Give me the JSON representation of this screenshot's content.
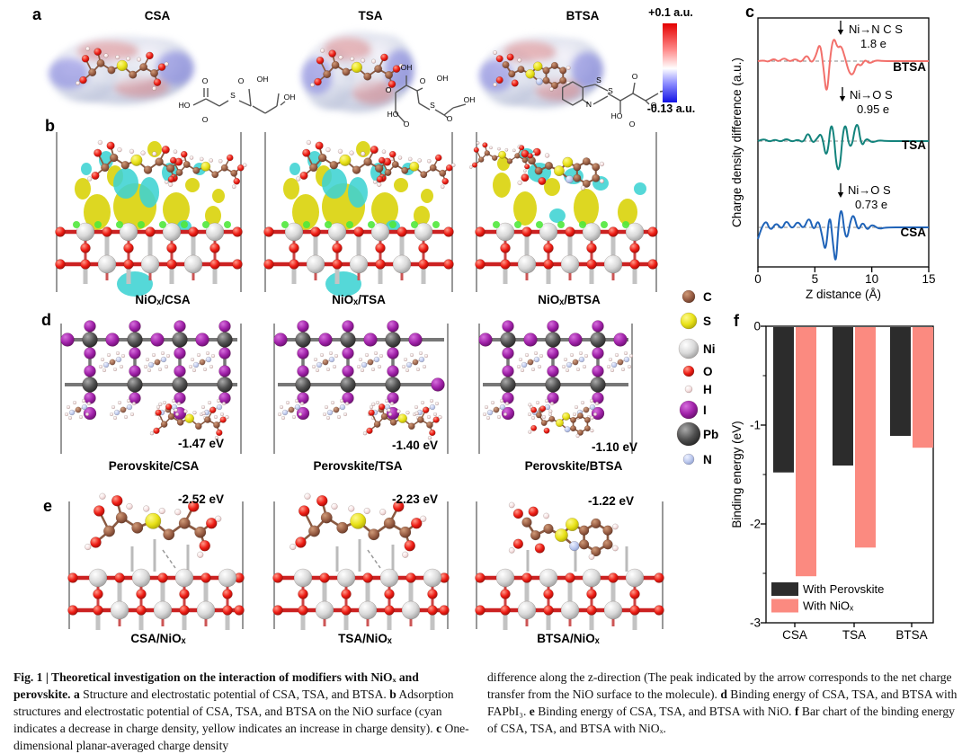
{
  "panel_a": {
    "label": "a",
    "molecule_titles": [
      "CSA",
      "TSA",
      "BTSA"
    ],
    "colorbar": {
      "top": "+0.1 a.u.",
      "bottom": "-0.13 a.u.",
      "top_color": "#e40000",
      "bottom_color": "#1212e4"
    },
    "skeletal_labels": {
      "CSA": [
        "HO",
        "O",
        "O",
        "OH",
        "S",
        "O",
        "OH"
      ],
      "TSA": [
        "OH",
        "O",
        "O",
        "OH",
        "HO",
        "O",
        "S",
        "O",
        "OH"
      ],
      "BTSA": [
        "S",
        "N",
        "S",
        "O",
        "OH",
        "HO",
        "O",
        "O"
      ]
    }
  },
  "panel_b": {
    "label": "b",
    "captions": [
      "NiOₓ/CSA",
      "NiOₓ/TSA",
      "NiOₓ/BTSA"
    ]
  },
  "panel_c": {
    "label": "c"
  },
  "panel_d": {
    "label": "d",
    "captions": [
      "Perovskite/CSA",
      "Perovskite/TSA",
      "Perovskite/BTSA"
    ],
    "energies": [
      "-1.47 eV",
      "-1.40 eV",
      "-1.10 eV"
    ]
  },
  "panel_e": {
    "label": "e",
    "captions": [
      "CSA/NiOₓ",
      "TSA/NiOₓ",
      "BTSA/NiOₓ"
    ],
    "energies": [
      "-2.52 eV",
      "-2.23 eV",
      "-1.22 eV"
    ]
  },
  "panel_f": {
    "label": "f"
  },
  "atom_legend": [
    {
      "symbol": "C",
      "color": "#9a5f45",
      "r": 7
    },
    {
      "symbol": "S",
      "color": "#e8e117",
      "r": 9
    },
    {
      "symbol": "Ni",
      "color": "#c9c9c9",
      "r": 11
    },
    {
      "symbol": "O",
      "color": "#ee1c14",
      "r": 6
    },
    {
      "symbol": "H",
      "color": "#f6e3e3",
      "r": 4
    },
    {
      "symbol": "I",
      "color": "#a021a9",
      "r": 10
    },
    {
      "symbol": "Pb",
      "color": "#515151",
      "r": 13
    },
    {
      "symbol": "N",
      "color": "#bdc9ee",
      "r": 6
    }
  ],
  "chart_data": [
    {
      "panel": "c",
      "type": "line",
      "xlabel": "Z distance (Å)",
      "ylabel": "Charge density difference (a.u.)",
      "xlim": [
        0,
        15
      ],
      "xticks": [
        0,
        5,
        10,
        15
      ],
      "baseline_style": "dashed",
      "note": "Three stacked planar-averaged charge-density-difference profiles; y offsets are arbitrary units, profiles approximate the drawn oscillations",
      "series": [
        {
          "name": "BTSA",
          "color": "#f2706b",
          "annotation": "Ni→N C S",
          "charge_transfer": "1.8 e",
          "arrow_z": 7.3,
          "profile": [
            [
              0,
              0
            ],
            [
              0.5,
              -1
            ],
            [
              0.9,
              1
            ],
            [
              1.4,
              -3
            ],
            [
              1.8,
              1
            ],
            [
              2.3,
              -4
            ],
            [
              2.8,
              1
            ],
            [
              3.3,
              -3
            ],
            [
              3.8,
              2
            ],
            [
              4.3,
              -8
            ],
            [
              4.7,
              3
            ],
            [
              5.1,
              -6
            ],
            [
              5.45,
              -22
            ],
            [
              5.75,
              6
            ],
            [
              6.05,
              42
            ],
            [
              6.35,
              -6
            ],
            [
              6.65,
              -28
            ],
            [
              7.0,
              -14
            ],
            [
              7.3,
              -18
            ],
            [
              7.65,
              -4
            ],
            [
              8.0,
              13
            ],
            [
              8.35,
              16
            ],
            [
              8.7,
              2
            ],
            [
              9.05,
              6
            ],
            [
              9.4,
              -2
            ],
            [
              9.8,
              3
            ],
            [
              10.3,
              -1
            ],
            [
              11,
              0
            ],
            [
              12.5,
              0
            ],
            [
              15,
              0
            ]
          ]
        },
        {
          "name": "TSA",
          "color": "#13837c",
          "annotation": "Ni→O S",
          "charge_transfer": "0.95 e",
          "arrow_z": 7.5,
          "profile": [
            [
              0,
              0
            ],
            [
              0.5,
              -3
            ],
            [
              1.0,
              1
            ],
            [
              1.5,
              -2
            ],
            [
              2.0,
              1
            ],
            [
              2.5,
              -3
            ],
            [
              3.0,
              1
            ],
            [
              3.5,
              -2
            ],
            [
              4.0,
              2
            ],
            [
              4.4,
              -11
            ],
            [
              4.8,
              3
            ],
            [
              5.2,
              -3
            ],
            [
              5.6,
              -10
            ],
            [
              6.05,
              25
            ],
            [
              6.5,
              -34
            ],
            [
              7.05,
              53
            ],
            [
              7.6,
              -32
            ],
            [
              8.1,
              17
            ],
            [
              8.7,
              -28
            ],
            [
              9.1,
              8
            ],
            [
              9.5,
              -4
            ],
            [
              10.0,
              2
            ],
            [
              10.6,
              -1
            ],
            [
              11.2,
              0
            ],
            [
              13,
              0
            ],
            [
              15,
              0
            ]
          ]
        },
        {
          "name": "CSA",
          "color": "#1f63b8",
          "annotation": "Ni→O S",
          "charge_transfer": "0.73 e",
          "arrow_z": 7.3,
          "profile": [
            [
              0,
              13
            ],
            [
              0.6,
              -12
            ],
            [
              1.1,
              5
            ],
            [
              1.6,
              -6
            ],
            [
              2.1,
              3
            ],
            [
              2.5,
              -9
            ],
            [
              3.0,
              3
            ],
            [
              3.5,
              -8
            ],
            [
              4.0,
              3
            ],
            [
              4.5,
              -13
            ],
            [
              4.9,
              5
            ],
            [
              5.3,
              -10
            ],
            [
              5.65,
              10
            ],
            [
              5.95,
              30
            ],
            [
              6.3,
              -20
            ],
            [
              6.6,
              20
            ],
            [
              6.85,
              44
            ],
            [
              7.1,
              -8
            ],
            [
              7.35,
              -23
            ],
            [
              7.6,
              6
            ],
            [
              7.85,
              13
            ],
            [
              8.1,
              -6
            ],
            [
              8.4,
              -16
            ],
            [
              8.8,
              5
            ],
            [
              9.2,
              -7
            ],
            [
              9.6,
              4
            ],
            [
              10.0,
              -4
            ],
            [
              10.6,
              2
            ],
            [
              11.2,
              0
            ],
            [
              13,
              0
            ],
            [
              15,
              0
            ]
          ]
        }
      ]
    },
    {
      "panel": "f",
      "type": "bar",
      "categories": [
        "CSA",
        "TSA",
        "BTSA"
      ],
      "series": [
        {
          "name": "With Perovskite",
          "color": "#2c2c2c",
          "values": [
            -1.47,
            -1.4,
            -1.1
          ]
        },
        {
          "name": "With NiOₓ",
          "color": "#fb8a80",
          "values": [
            -2.52,
            -2.23,
            -1.22
          ]
        }
      ],
      "ylabel": "Binding energy (eV)",
      "ylim": [
        -3,
        0
      ],
      "yticks": [
        0,
        -1,
        -2,
        -3
      ],
      "legend_position": "inside bottom-left",
      "grid": false
    }
  ],
  "caption": {
    "left_runs": [
      {
        "b": true,
        "t": "Fig. 1 | Theoretical investigation on the interaction of modifiers with NiOₓ and perovskite. "
      },
      {
        "b": true,
        "t": "a"
      },
      {
        "t": " Structure and electrostatic potential of CSA, TSA, and BTSA. "
      },
      {
        "b": true,
        "t": "b"
      },
      {
        "t": " Adsorption structures and electrostatic potential of CSA, TSA, and BTSA on the NiO surface (cyan indicates a decrease in charge density, yellow indicates an increase in charge density). "
      },
      {
        "b": true,
        "t": "c"
      },
      {
        "t": " One-dimensional planar-averaged charge density"
      }
    ],
    "right_runs": [
      {
        "t": "difference along the z-direction (The peak indicated by the arrow corresponds to the net charge transfer from the NiO surface to the molecule). "
      },
      {
        "b": true,
        "t": "d"
      },
      {
        "t": " Binding energy of CSA, TSA, and BTSA with FAPbI₃. "
      },
      {
        "b": true,
        "t": "e"
      },
      {
        "t": " Binding energy of CSA, TSA, and BTSA with NiO. "
      },
      {
        "b": true,
        "t": "f"
      },
      {
        "t": " Bar chart of the binding energy of CSA, TSA, and BTSA with NiOₓ."
      }
    ]
  }
}
